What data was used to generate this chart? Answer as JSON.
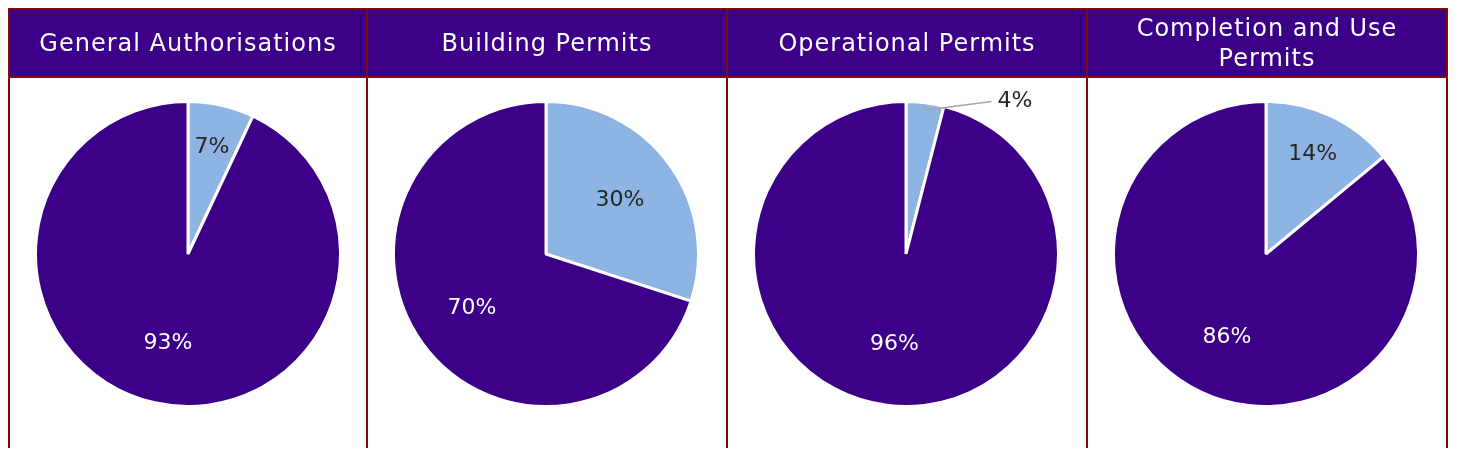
{
  "chart_data": [
    {
      "type": "pie",
      "title": "General Authorisations",
      "categories": [
        null,
        null
      ],
      "values": [
        7,
        93
      ],
      "colors": [
        "#8eb4e3",
        "#3c0088"
      ],
      "value_labels": [
        "7%",
        "93%"
      ],
      "legend": false
    },
    {
      "type": "pie",
      "title": "Building Permits",
      "categories": [
        null,
        null
      ],
      "values": [
        30,
        70
      ],
      "colors": [
        "#8eb4e3",
        "#3c0088"
      ],
      "value_labels": [
        "30%",
        "70%"
      ],
      "legend": false
    },
    {
      "type": "pie",
      "title": "Operational Permits",
      "categories": [
        null,
        null
      ],
      "values": [
        4,
        96
      ],
      "colors": [
        "#8eb4e3",
        "#3c0088"
      ],
      "value_labels": [
        "4%",
        "96%"
      ],
      "legend": false
    },
    {
      "type": "pie",
      "title": "Completion and Use Permits",
      "categories": [
        null,
        null
      ],
      "values": [
        14,
        86
      ],
      "colors": [
        "#8eb4e3",
        "#3c0088"
      ],
      "value_labels": [
        "14%",
        "86%"
      ],
      "legend": false
    }
  ]
}
